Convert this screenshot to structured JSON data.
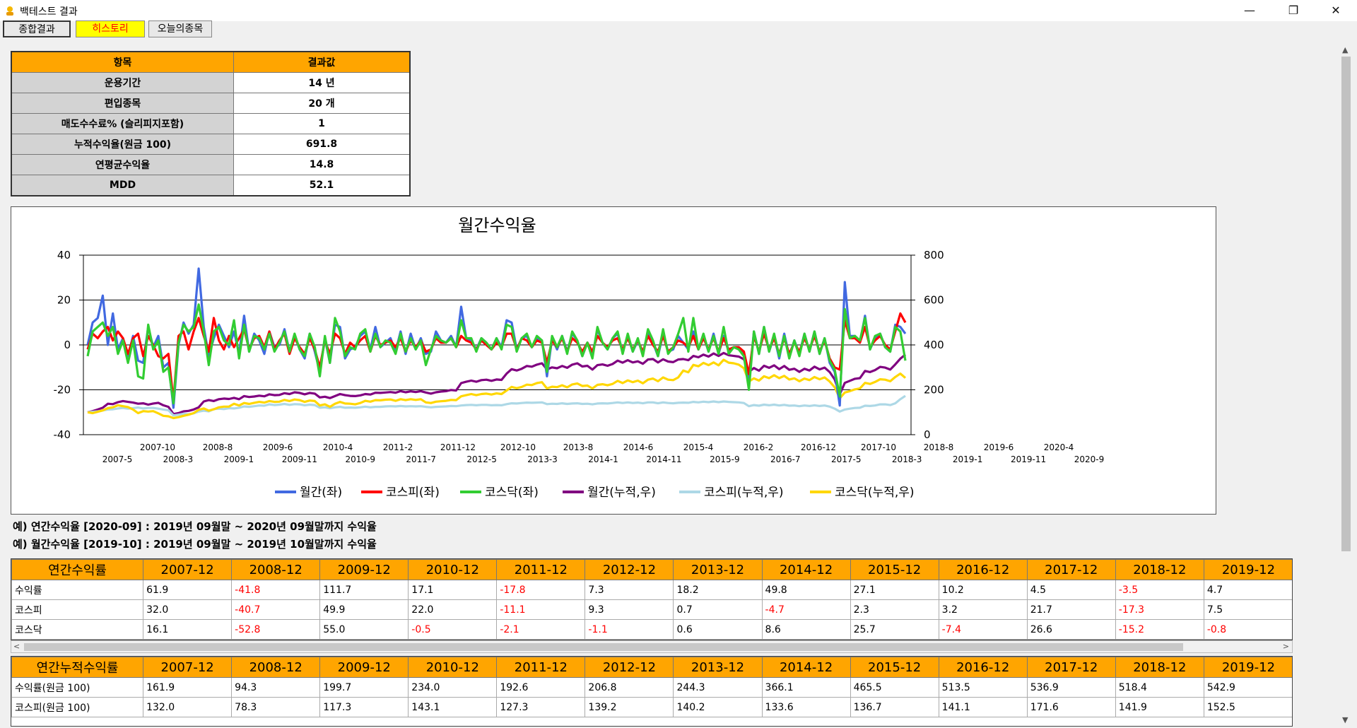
{
  "window": {
    "title": "백테스트 결과",
    "minimize": "—",
    "maximize": "❐",
    "close": "✕"
  },
  "tabs": [
    {
      "label": "종합결과"
    },
    {
      "label": "히스토리"
    },
    {
      "label": "오늘의종목"
    }
  ],
  "summary": {
    "headers": [
      "항목",
      "결과값"
    ],
    "rows": [
      {
        "label": "운용기간",
        "value": "14 년"
      },
      {
        "label": "편입종목",
        "value": "20 개"
      },
      {
        "label": "매도수수료% (슬리피지포함)",
        "value": "1"
      },
      {
        "label": "누적수익율(원금 100)",
        "value": "691.8"
      },
      {
        "label": "연평균수익율",
        "value": "14.8"
      },
      {
        "label": "MDD",
        "value": "52.1"
      }
    ]
  },
  "chart_data": {
    "type": "line",
    "title": "월간수익율",
    "y_left": {
      "min": -40,
      "max": 40,
      "ticks": [
        "40",
        "20",
        "0",
        "-20",
        "-40"
      ]
    },
    "y_right": {
      "min": 0,
      "max": 800,
      "ticks": [
        "800",
        "600",
        "400",
        "200",
        "0"
      ]
    },
    "x_ticks_upper": [
      "2007-10",
      "2008-8",
      "2009-6",
      "2010-4",
      "2011-2",
      "2011-12",
      "2012-10",
      "2013-8",
      "2014-6",
      "2015-4",
      "2016-2",
      "2016-12",
      "2017-10",
      "2018-8",
      "2019-6",
      "2020-4"
    ],
    "x_ticks_lower": [
      "2007-5",
      "2008-3",
      "2009-1",
      "2009-11",
      "2010-9",
      "2011-7",
      "2012-5",
      "2013-3",
      "2014-1",
      "2014-11",
      "2015-9",
      "2016-7",
      "2017-5",
      "2018-3",
      "2019-1",
      "2019-11",
      "2020-9"
    ],
    "series": [
      {
        "name": "월간(좌)",
        "axis": "left",
        "color": "#4169e1",
        "values": [
          0,
          10,
          12,
          22,
          0,
          14,
          -2,
          3,
          -5,
          4,
          -7,
          -8,
          8,
          -1,
          4,
          -10,
          -8,
          -28,
          0,
          10,
          5,
          9,
          34,
          8,
          -5,
          3,
          9,
          4,
          -1,
          6,
          -4,
          13,
          -3,
          5,
          2,
          -4,
          6,
          -1,
          0,
          7,
          -3,
          4,
          -2,
          -6,
          5,
          -3,
          -12,
          3,
          -8,
          9,
          8,
          -6,
          -2,
          -1,
          4,
          6,
          -2,
          8,
          -1,
          1,
          3,
          -3,
          6,
          -4,
          5,
          -2,
          3,
          -4,
          -3,
          6,
          2,
          1,
          4,
          -1,
          17,
          3,
          2,
          -2,
          3,
          1,
          -2,
          3,
          -1,
          11,
          10,
          -2,
          3,
          4,
          -1,
          3,
          2,
          -14,
          3,
          -2,
          4,
          -3,
          5,
          2,
          -5,
          1,
          -5,
          7,
          1,
          -2,
          3,
          5,
          -3,
          4,
          -3,
          2,
          -4,
          6,
          1,
          -5,
          5,
          -3,
          -2,
          4,
          1,
          -2,
          6,
          -2,
          4,
          -3,
          5,
          -4,
          4,
          -3,
          -1,
          -1,
          -4,
          -17,
          6,
          -4,
          8,
          -3,
          4,
          -6,
          5,
          -5,
          2,
          -4,
          5,
          -3,
          6,
          -4,
          3,
          -8,
          -12,
          -27,
          28,
          4,
          4,
          1,
          13,
          -2,
          3,
          5,
          -1,
          -3,
          9,
          8,
          5
        ]
      },
      {
        "name": "코스피(좌)",
        "axis": "left",
        "color": "#ff0000",
        "values": [
          -2,
          5,
          3,
          6,
          8,
          2,
          6,
          3,
          -4,
          3,
          5,
          -5,
          4,
          0,
          -5,
          -6,
          -4,
          -25,
          4,
          6,
          -2,
          6,
          12,
          4,
          -3,
          12,
          2,
          -2,
          4,
          -1,
          3,
          7,
          -2,
          3,
          4,
          -1,
          6,
          -2,
          2,
          5,
          -4,
          3,
          -1,
          -4,
          3,
          -2,
          -10,
          2,
          -4,
          5,
          3,
          -4,
          1,
          -1,
          2,
          4,
          -3,
          4,
          0,
          1,
          2,
          -1,
          3,
          -3,
          2,
          -1,
          2,
          -3,
          -2,
          3,
          1,
          1,
          3,
          -1,
          4,
          2,
          1,
          -2,
          2,
          0,
          -2,
          1,
          -1,
          5,
          5,
          -2,
          3,
          2,
          -1,
          2,
          1,
          -8,
          2,
          -1,
          3,
          -3,
          3,
          1,
          -3,
          1,
          -3,
          4,
          1,
          -1,
          2,
          3,
          -2,
          3,
          -2,
          2,
          -3,
          4,
          0,
          -3,
          4,
          -3,
          -1,
          2,
          1,
          -1,
          4,
          -2,
          3,
          -2,
          3,
          -3,
          3,
          -2,
          -1,
          -1,
          -3,
          -13,
          4,
          -3,
          5,
          -2,
          3,
          -4,
          3,
          -4,
          1,
          -3,
          3,
          -2,
          4,
          -3,
          2,
          -6,
          -10,
          -11,
          11,
          3,
          3,
          1,
          8,
          -1,
          2,
          4,
          0,
          -2,
          6,
          14,
          10
        ]
      },
      {
        "name": "코스닥(좌)",
        "axis": "left",
        "color": "#32cd32",
        "values": [
          -5,
          6,
          8,
          10,
          4,
          8,
          -4,
          2,
          -8,
          2,
          -14,
          -15,
          9,
          -2,
          2,
          -12,
          -10,
          -26,
          1,
          9,
          6,
          8,
          18,
          6,
          -9,
          6,
          8,
          2,
          0,
          11,
          -6,
          9,
          -3,
          4,
          3,
          -2,
          5,
          -3,
          1,
          6,
          -3,
          5,
          -2,
          -5,
          5,
          -1,
          -14,
          4,
          -8,
          12,
          6,
          -5,
          -1,
          -2,
          5,
          7,
          -3,
          5,
          -1,
          2,
          1,
          -4,
          5,
          -3,
          3,
          -2,
          2,
          -9,
          -2,
          4,
          2,
          1,
          3,
          -1,
          11,
          3,
          3,
          -3,
          3,
          1,
          -2,
          3,
          -2,
          9,
          8,
          -3,
          3,
          5,
          -1,
          4,
          2,
          -12,
          4,
          -1,
          4,
          -4,
          6,
          2,
          -5,
          1,
          -6,
          8,
          1,
          -2,
          3,
          6,
          -4,
          5,
          -3,
          3,
          -5,
          7,
          2,
          -5,
          7,
          -4,
          -1,
          5,
          12,
          -3,
          12,
          -2,
          5,
          -3,
          4,
          -4,
          8,
          -4,
          -1,
          -2,
          -5,
          -20,
          6,
          -4,
          8,
          -3,
          5,
          -5,
          4,
          -6,
          2,
          -5,
          5,
          -3,
          6,
          -4,
          3,
          -7,
          -11,
          -23,
          16,
          3,
          4,
          2,
          12,
          -2,
          4,
          5,
          -1,
          -3,
          8,
          6,
          -7
        ]
      },
      {
        "name": "월간(누적,우)",
        "axis": "right",
        "color": "#800080",
        "values": [
          100,
          105,
          112,
          120,
          138,
          136,
          145,
          150,
          146,
          143,
          138,
          140,
          134,
          139,
          142,
          131,
          124,
          92,
          96,
          104,
          106,
          112,
          122,
          148,
          154,
          150,
          158,
          161,
          159,
          164,
          158,
          172,
          168,
          170,
          174,
          171,
          180,
          176,
          177,
          185,
          181,
          189,
          186,
          180,
          186,
          183,
          166,
          169,
          163,
          172,
          181,
          176,
          173,
          172,
          175,
          181,
          179,
          187,
          186,
          188,
          190,
          187,
          194,
          189,
          193,
          190,
          194,
          188,
          183,
          189,
          192,
          194,
          199,
          197,
          230,
          236,
          241,
          236,
          243,
          245,
          240,
          246,
          244,
          272,
          292,
          286,
          294,
          306,
          303,
          312,
          318,
          291,
          300,
          296,
          306,
          298,
          312,
          318,
          304,
          307,
          290,
          310,
          313,
          307,
          315,
          330,
          321,
          332,
          322,
          327,
          316,
          335,
          337,
          322,
          336,
          326,
          323,
          335,
          337,
          332,
          351,
          345,
          357,
          348,
          362,
          351,
          364,
          354,
          351,
          348,
          336,
          280,
          297,
          285,
          307,
          298,
          309,
          292,
          306,
          289,
          294,
          280,
          294,
          286,
          303,
          291,
          299,
          279,
          246,
          180,
          231,
          240,
          249,
          252,
          284,
          279,
          288,
          302,
          299,
          290,
          313,
          339,
          357
        ]
      },
      {
        "name": "코스피(누적,우)",
        "axis": "right",
        "color": "#add8e6",
        "values": [
          100,
          102,
          104,
          108,
          112,
          113,
          117,
          119,
          116,
          118,
          121,
          117,
          119,
          119,
          116,
          112,
          109,
          86,
          89,
          93,
          91,
          95,
          103,
          107,
          104,
          114,
          116,
          114,
          118,
          117,
          120,
          126,
          124,
          127,
          130,
          129,
          135,
          132,
          134,
          137,
          133,
          136,
          135,
          131,
          134,
          132,
          120,
          122,
          118,
          122,
          124,
          120,
          121,
          120,
          122,
          125,
          122,
          124,
          124,
          126,
          127,
          126,
          128,
          126,
          127,
          126,
          127,
          124,
          122,
          124,
          125,
          126,
          128,
          127,
          130,
          132,
          133,
          131,
          133,
          133,
          131,
          132,
          131,
          136,
          140,
          139,
          141,
          143,
          142,
          143,
          144,
          136,
          138,
          137,
          140,
          137,
          139,
          140,
          137,
          138,
          135,
          139,
          140,
          139,
          141,
          144,
          141,
          144,
          141,
          143,
          140,
          144,
          144,
          140,
          144,
          141,
          140,
          142,
          143,
          142,
          146,
          144,
          147,
          145,
          148,
          145,
          148,
          146,
          145,
          144,
          141,
          127,
          132,
          129,
          134,
          131,
          134,
          130,
          133,
          129,
          130,
          127,
          130,
          128,
          131,
          128,
          130,
          125,
          116,
          103,
          112,
          116,
          119,
          120,
          129,
          128,
          130,
          135,
          135,
          132,
          140,
          158,
          173
        ]
      },
      {
        "name": "코스닥(누적,우)",
        "axis": "right",
        "color": "#ffd700",
        "values": [
          100,
          96,
          102,
          108,
          118,
          122,
          131,
          127,
          123,
          112,
          96,
          105,
          103,
          105,
          95,
          84,
          82,
          74,
          78,
          84,
          89,
          96,
          111,
          117,
          107,
          113,
          122,
          125,
          125,
          138,
          130,
          141,
          137,
          142,
          146,
          143,
          150,
          146,
          147,
          155,
          150,
          157,
          154,
          146,
          152,
          150,
          130,
          135,
          124,
          138,
          146,
          139,
          138,
          135,
          141,
          151,
          147,
          154,
          153,
          156,
          157,
          151,
          158,
          154,
          158,
          155,
          158,
          144,
          141,
          147,
          149,
          151,
          155,
          154,
          171,
          176,
          181,
          176,
          181,
          183,
          179,
          184,
          181,
          197,
          213,
          207,
          213,
          223,
          221,
          230,
          234,
          206,
          214,
          212,
          220,
          211,
          224,
          228,
          217,
          219,
          206,
          222,
          225,
          220,
          226,
          240,
          230,
          242,
          234,
          241,
          229,
          245,
          250,
          238,
          255,
          245,
          243,
          255,
          286,
          278,
          311,
          305,
          320,
          310,
          322,
          309,
          334,
          321,
          318,
          312,
          296,
          237,
          251,
          241,
          260,
          252,
          265,
          252,
          262,
          246,
          251,
          238,
          250,
          243,
          257,
          247,
          255,
          237,
          211,
          162,
          188,
          194,
          202,
          206,
          231,
          226,
          235,
          247,
          245,
          238,
          257,
          272,
          253
        ]
      }
    ]
  },
  "notes": [
    "예) 연간수익율 [2020-09] : 2019년 09월말 ~ 2020년 09월말까지 수익율",
    "예) 월간수익율 [2019-10] : 2019년 09월말 ~ 2019년 10월말까지 수익율"
  ],
  "annual": {
    "headers": [
      "연간수익률",
      "2007-12",
      "2008-12",
      "2009-12",
      "2010-12",
      "2011-12",
      "2012-12",
      "2013-12",
      "2014-12",
      "2015-12",
      "2016-12",
      "2017-12",
      "2018-12",
      "2019-12"
    ],
    "rows": [
      [
        "수익률",
        "61.9",
        "-41.8",
        "111.7",
        "17.1",
        "-17.8",
        "7.3",
        "18.2",
        "49.8",
        "27.1",
        "10.2",
        "4.5",
        "-3.5",
        "4.7"
      ],
      [
        "코스피",
        "32.0",
        "-40.7",
        "49.9",
        "22.0",
        "-11.1",
        "9.3",
        "0.7",
        "-4.7",
        "2.3",
        "3.2",
        "21.7",
        "-17.3",
        "7.5"
      ],
      [
        "코스닥",
        "16.1",
        "-52.8",
        "55.0",
        "-0.5",
        "-2.1",
        "-1.1",
        "0.6",
        "8.6",
        "25.7",
        "-7.4",
        "26.6",
        "-15.2",
        "-0.8"
      ]
    ]
  },
  "cumulative": {
    "headers": [
      "연간누적수익률",
      "2007-12",
      "2008-12",
      "2009-12",
      "2010-12",
      "2011-12",
      "2012-12",
      "2013-12",
      "2014-12",
      "2015-12",
      "2016-12",
      "2017-12",
      "2018-12",
      "2019-12"
    ],
    "rows": [
      [
        "수익률(원금 100)",
        "161.9",
        "94.3",
        "199.7",
        "234.0",
        "192.6",
        "206.8",
        "244.3",
        "366.1",
        "465.5",
        "513.5",
        "536.9",
        "518.4",
        "542.9"
      ],
      [
        "코스피(원금 100)",
        "132.0",
        "78.3",
        "117.3",
        "143.1",
        "127.3",
        "139.2",
        "140.2",
        "133.6",
        "136.7",
        "141.1",
        "171.6",
        "141.9",
        "152.5"
      ]
    ]
  }
}
